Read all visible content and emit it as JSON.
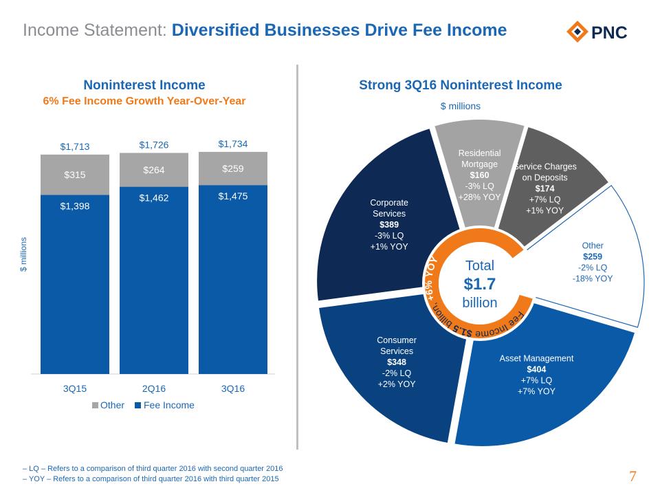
{
  "header": {
    "title_lead": "Income Statement:",
    "title_main": "Diversified Businesses Drive Fee Income",
    "logo_text": "PNC"
  },
  "left": {
    "heading": "Noninterest Income",
    "subheading": "6% Fee Income Growth Year-Over-Year",
    "ylabel": "$ millions"
  },
  "right": {
    "heading": "Strong 3Q16 Noninterest Income",
    "unit": "$ millions"
  },
  "center": {
    "line1": "Total",
    "line2": "$1.7",
    "line3": "billion",
    "ring_text_a": "Fee Income ",
    "ring_text_b": "$1.5",
    "ring_text_c": " billion, ",
    "ring_text_d": "+6% YOY"
  },
  "footnotes": [
    "– LQ – Refers to a comparison of third quarter 2016 with second quarter 2016",
    "– YOY – Refers to a comparison of third quarter 2016 with third quarter 2015"
  ],
  "page_number": "7",
  "colors": {
    "fee": "#0b5aa8",
    "other": "#a6a6a6",
    "orange": "#f07a1a",
    "blue_text": "#1b67b4"
  },
  "chart_data": [
    {
      "type": "bar",
      "stacked": true,
      "categories": [
        "3Q15",
        "2Q16",
        "3Q16"
      ],
      "series": [
        {
          "name": "Fee Income",
          "values": [
            1398,
            1462,
            1475
          ],
          "labels": [
            "$1,398",
            "$1,462",
            "$1,475"
          ],
          "color": "#0b5aa8"
        },
        {
          "name": "Other",
          "values": [
            315,
            264,
            259
          ],
          "labels": [
            "$315",
            "$264",
            "$259"
          ],
          "color": "#a6a6a6"
        }
      ],
      "totals": [
        "$1,713",
        "$1,726",
        "$1,734"
      ],
      "legend": [
        "Other",
        "Fee Income"
      ],
      "ylim": [
        0,
        1900
      ]
    },
    {
      "type": "pie",
      "slices": [
        {
          "name": "Corporate Services",
          "value": 389,
          "value_label": "$389",
          "lq": "-3% LQ",
          "yoy": "+1% YOY",
          "color": "#0e2a54",
          "fee": true
        },
        {
          "name": "Residential Mortgage",
          "value": 160,
          "value_label": "$160",
          "lq": "-3% LQ",
          "yoy": "+28% YOY",
          "color": "#a3a3a3",
          "fee": true
        },
        {
          "name": "Service Charges on Deposits",
          "value": 174,
          "value_label": "$174",
          "lq": "+7% LQ",
          "yoy": "+1% YOY",
          "color": "#5f5f5f",
          "fee": true
        },
        {
          "name": "Other",
          "value": 259,
          "value_label": "$259",
          "lq": "-2% LQ",
          "yoy": "-18% YOY",
          "color": "#ffffff",
          "fee": false
        },
        {
          "name": "Asset Management",
          "value": 404,
          "value_label": "$404",
          "lq": "+7% LQ",
          "yoy": "+7% YOY",
          "color": "#0b5aa8",
          "fee": true
        },
        {
          "name": "Consumer Services",
          "value": 348,
          "value_label": "$348",
          "lq": "-2% LQ",
          "yoy": "+2% YOY",
          "color": "#0a4280",
          "fee": true
        }
      ]
    }
  ]
}
